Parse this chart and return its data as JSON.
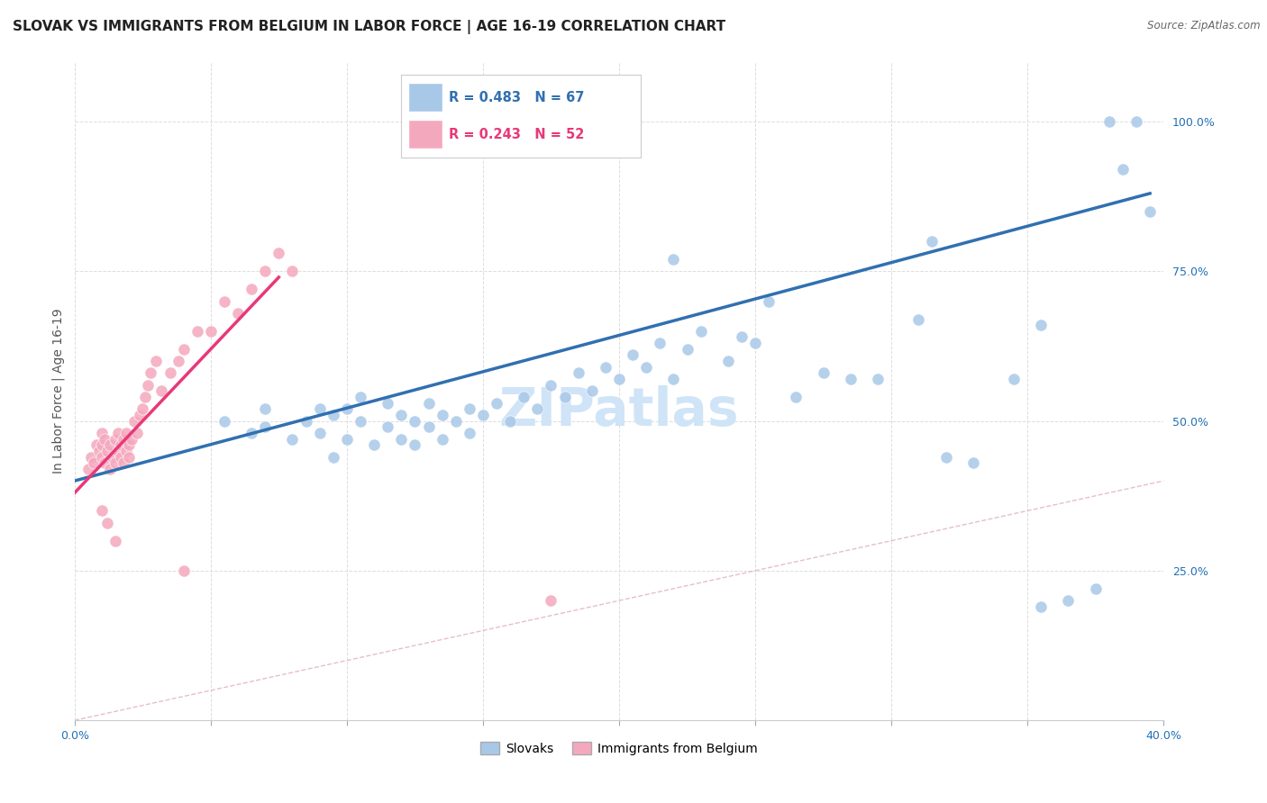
{
  "title": "SLOVAK VS IMMIGRANTS FROM BELGIUM IN LABOR FORCE | AGE 16-19 CORRELATION CHART",
  "source": "Source: ZipAtlas.com",
  "ylabel": "In Labor Force | Age 16-19",
  "xlim": [
    0.0,
    0.4
  ],
  "ylim": [
    0.0,
    1.1
  ],
  "yticks": [
    0.25,
    0.5,
    0.75,
    1.0
  ],
  "ytick_labels": [
    "25.0%",
    "50.0%",
    "75.0%",
    "100.0%"
  ],
  "xticks": [
    0.0,
    0.05,
    0.1,
    0.15,
    0.2,
    0.25,
    0.3,
    0.35,
    0.4
  ],
  "xtick_labels": [
    "0.0%",
    "",
    "",
    "",
    "",
    "",
    "",
    "",
    "40.0%"
  ],
  "legend_blue_R": "R = 0.483",
  "legend_blue_N": "N = 67",
  "legend_pink_R": "R = 0.243",
  "legend_pink_N": "N = 52",
  "blue_color": "#a8c8e8",
  "pink_color": "#f4a8be",
  "blue_line_color": "#3070b0",
  "pink_line_color": "#e83878",
  "diagonal_color": "#e0b0b8",
  "watermark": "ZIPatlas",
  "blue_scatter_x": [
    0.055,
    0.065,
    0.07,
    0.07,
    0.08,
    0.085,
    0.09,
    0.09,
    0.095,
    0.095,
    0.1,
    0.1,
    0.105,
    0.105,
    0.11,
    0.115,
    0.115,
    0.12,
    0.12,
    0.125,
    0.125,
    0.13,
    0.13,
    0.135,
    0.135,
    0.14,
    0.145,
    0.145,
    0.15,
    0.155,
    0.16,
    0.165,
    0.17,
    0.175,
    0.18,
    0.185,
    0.19,
    0.195,
    0.2,
    0.205,
    0.21,
    0.215,
    0.22,
    0.225,
    0.23,
    0.24,
    0.245,
    0.25,
    0.265,
    0.275,
    0.285,
    0.295,
    0.32,
    0.33,
    0.345,
    0.355,
    0.22,
    0.255,
    0.31,
    0.315,
    0.355,
    0.365,
    0.375,
    0.38,
    0.385,
    0.39,
    0.395
  ],
  "blue_scatter_y": [
    0.5,
    0.48,
    0.49,
    0.52,
    0.47,
    0.5,
    0.48,
    0.52,
    0.44,
    0.51,
    0.47,
    0.52,
    0.5,
    0.54,
    0.46,
    0.49,
    0.53,
    0.47,
    0.51,
    0.46,
    0.5,
    0.49,
    0.53,
    0.47,
    0.51,
    0.5,
    0.48,
    0.52,
    0.51,
    0.53,
    0.5,
    0.54,
    0.52,
    0.56,
    0.54,
    0.58,
    0.55,
    0.59,
    0.57,
    0.61,
    0.59,
    0.63,
    0.57,
    0.62,
    0.65,
    0.6,
    0.64,
    0.63,
    0.54,
    0.58,
    0.57,
    0.57,
    0.44,
    0.43,
    0.57,
    0.66,
    0.77,
    0.7,
    0.67,
    0.8,
    0.19,
    0.2,
    0.22,
    1.0,
    0.92,
    1.0,
    0.85
  ],
  "pink_scatter_x": [
    0.005,
    0.006,
    0.007,
    0.008,
    0.009,
    0.01,
    0.01,
    0.01,
    0.011,
    0.011,
    0.012,
    0.013,
    0.013,
    0.014,
    0.015,
    0.015,
    0.016,
    0.016,
    0.017,
    0.017,
    0.018,
    0.018,
    0.019,
    0.019,
    0.02,
    0.02,
    0.021,
    0.022,
    0.023,
    0.024,
    0.025,
    0.026,
    0.027,
    0.028,
    0.03,
    0.032,
    0.035,
    0.038,
    0.04,
    0.045,
    0.05,
    0.055,
    0.06,
    0.065,
    0.07,
    0.075,
    0.08,
    0.01,
    0.012,
    0.015,
    0.04,
    0.175
  ],
  "pink_scatter_y": [
    0.42,
    0.44,
    0.43,
    0.46,
    0.45,
    0.44,
    0.46,
    0.48,
    0.43,
    0.47,
    0.45,
    0.42,
    0.46,
    0.44,
    0.43,
    0.47,
    0.45,
    0.48,
    0.44,
    0.46,
    0.43,
    0.47,
    0.45,
    0.48,
    0.44,
    0.46,
    0.47,
    0.5,
    0.48,
    0.51,
    0.52,
    0.54,
    0.56,
    0.58,
    0.6,
    0.55,
    0.58,
    0.6,
    0.62,
    0.65,
    0.65,
    0.7,
    0.68,
    0.72,
    0.75,
    0.78,
    0.75,
    0.35,
    0.33,
    0.3,
    0.25,
    0.2
  ],
  "blue_line_x": [
    0.0,
    0.395
  ],
  "blue_line_y": [
    0.4,
    0.88
  ],
  "pink_line_x": [
    0.0,
    0.075
  ],
  "pink_line_y": [
    0.38,
    0.74
  ],
  "diag_line_x": [
    0.0,
    0.4
  ],
  "diag_line_y": [
    0.0,
    0.4
  ],
  "title_fontsize": 11,
  "axis_label_fontsize": 10,
  "tick_fontsize": 9,
  "watermark_fontsize": 42,
  "watermark_color": "#d0e4f7",
  "background_color": "#ffffff",
  "tick_color": "#2171b5"
}
